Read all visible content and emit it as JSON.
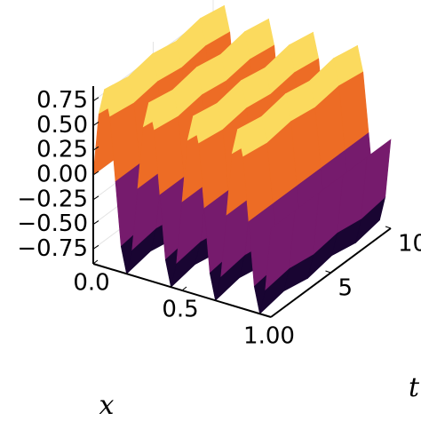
{
  "chart_data": {
    "type": "surface",
    "x_label": "x",
    "t_label": "t",
    "x": [
      0,
      0.03125,
      0.0625,
      0.09375,
      0.125,
      0.15625,
      0.1875,
      0.21875,
      0.25,
      0.28125,
      0.3125,
      0.34375,
      0.375,
      0.40625,
      0.4375,
      0.46875,
      0.5,
      0.53125,
      0.5625,
      0.59375,
      0.625,
      0.65625,
      0.6875,
      0.71875,
      0.75,
      0.78125,
      0.8125,
      0.84375,
      0.875,
      0.90625,
      0.9375,
      0.96875,
      1
    ],
    "t": [
      0,
      2,
      4,
      6,
      8,
      10
    ],
    "z": [
      [
        0,
        0.64,
        0.9,
        0.64,
        0,
        -0.64,
        -0.9,
        -0.64,
        0,
        0.64,
        0.9,
        0.64,
        0,
        -0.64,
        -0.9,
        -0.64,
        0,
        0.64,
        0.9,
        0.64,
        0,
        -0.64,
        -0.9,
        -0.64,
        0,
        0.64,
        0.9,
        0.64,
        0,
        -0.64,
        -0.9,
        -0.64,
        0
      ],
      [
        0,
        0.6,
        0.85,
        0.6,
        0,
        -0.6,
        -0.85,
        -0.6,
        0,
        0.6,
        0.85,
        0.6,
        0,
        -0.6,
        -0.85,
        -0.6,
        0,
        0.6,
        0.85,
        0.6,
        0,
        -0.6,
        -0.85,
        -0.6,
        0,
        0.6,
        0.85,
        0.6,
        0,
        -0.6,
        -0.85,
        -0.6,
        0
      ],
      [
        0,
        0.64,
        0.9,
        0.64,
        0,
        -0.64,
        -0.9,
        -0.64,
        0,
        0.64,
        0.9,
        0.64,
        0,
        -0.64,
        -0.9,
        -0.64,
        0,
        0.64,
        0.9,
        0.64,
        0,
        -0.64,
        -0.9,
        -0.64,
        0,
        0.64,
        0.9,
        0.64,
        0,
        -0.64,
        -0.9,
        -0.64,
        0
      ],
      [
        0,
        0.6,
        0.85,
        0.6,
        0,
        -0.6,
        -0.85,
        -0.6,
        0,
        0.6,
        0.85,
        0.6,
        0,
        -0.6,
        -0.85,
        -0.6,
        0,
        0.6,
        0.85,
        0.6,
        0,
        -0.6,
        -0.85,
        -0.6,
        0,
        0.6,
        0.85,
        0.6,
        0,
        -0.6,
        -0.85,
        -0.6,
        0
      ],
      [
        0,
        0.64,
        0.9,
        0.64,
        0,
        -0.64,
        -0.9,
        -0.64,
        0,
        0.64,
        0.9,
        0.64,
        0,
        -0.64,
        -0.9,
        -0.64,
        0,
        0.64,
        0.9,
        0.64,
        0,
        -0.64,
        -0.9,
        -0.64,
        0,
        0.64,
        0.9,
        0.64,
        0,
        -0.64,
        -0.9,
        -0.64,
        0
      ],
      [
        0,
        0.6,
        0.85,
        0.6,
        0,
        -0.6,
        -0.85,
        -0.6,
        0,
        0.6,
        0.85,
        0.6,
        0,
        -0.6,
        -0.85,
        -0.6,
        0,
        0.6,
        0.85,
        0.6,
        0,
        -0.6,
        -0.85,
        -0.6,
        0,
        0.6,
        0.85,
        0.6,
        0,
        -0.6,
        -0.85,
        -0.6,
        0
      ]
    ],
    "xlim": [
      0,
      1
    ],
    "tlim": [
      0,
      10
    ],
    "zlim": [
      -0.9,
      0.9
    ],
    "xticks": [
      {
        "value": 0,
        "label": "0.0"
      },
      0.5,
      {
        "value": 1,
        "label": "1.00"
      }
    ],
    "tticks": [
      5,
      10
    ],
    "zticks": [
      {
        "value": -0.75,
        "label": "−0.75"
      },
      {
        "value": -0.5,
        "label": "−0.50"
      },
      {
        "value": -0.25,
        "label": "−0.25"
      },
      {
        "value": 0,
        "label": "0.00"
      },
      {
        "value": 0.25,
        "label": "0.25"
      },
      {
        "value": 0.5,
        "label": "0.50"
      },
      {
        "value": 0.75,
        "label": "0.75"
      }
    ],
    "colormap": [
      "#000004",
      "#320a5e",
      "#781c6d",
      "#bc3754",
      "#ed6925",
      "#fbb61a",
      "#fcffa4"
    ],
    "grid": true
  }
}
